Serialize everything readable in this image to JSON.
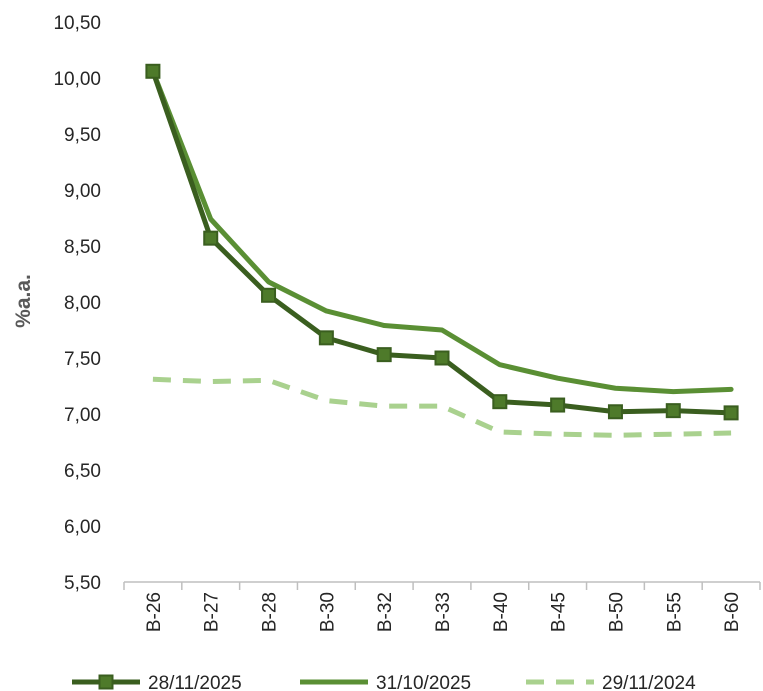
{
  "chart_data": {
    "type": "line",
    "title": "",
    "xlabel": "",
    "ylabel": "%a.a.",
    "categories": [
      "B-26",
      "B-27",
      "B-28",
      "B-30",
      "B-32",
      "B-33",
      "B-40",
      "B-45",
      "B-50",
      "B-55",
      "B-60"
    ],
    "ylim": [
      5.5,
      10.5
    ],
    "yticks": [
      5.5,
      6.0,
      6.5,
      7.0,
      7.5,
      8.0,
      8.5,
      9.0,
      9.5,
      10.0,
      10.5
    ],
    "ytick_labels": [
      "5,50",
      "6,00",
      "6,50",
      "7,00",
      "7,50",
      "8,00",
      "8,50",
      "9,00",
      "9,50",
      "10,00",
      "10,50"
    ],
    "grid": false,
    "legend_position": "bottom",
    "series": [
      {
        "name": "28/11/2025",
        "color": "#3a5e1f",
        "style": "solid-square-markers",
        "values": [
          10.06,
          8.57,
          8.06,
          7.68,
          7.53,
          7.5,
          7.11,
          7.08,
          7.02,
          7.03,
          7.01
        ]
      },
      {
        "name": "31/10/2025",
        "color": "#5a8f34",
        "style": "solid",
        "values": [
          10.06,
          8.74,
          8.18,
          7.92,
          7.79,
          7.75,
          7.44,
          7.32,
          7.23,
          7.2,
          7.22
        ]
      },
      {
        "name": "29/11/2024",
        "color": "#a9d18e",
        "style": "dashed",
        "values": [
          7.31,
          7.29,
          7.3,
          7.12,
          7.07,
          7.07,
          6.84,
          6.82,
          6.81,
          6.82,
          6.83
        ]
      }
    ]
  }
}
